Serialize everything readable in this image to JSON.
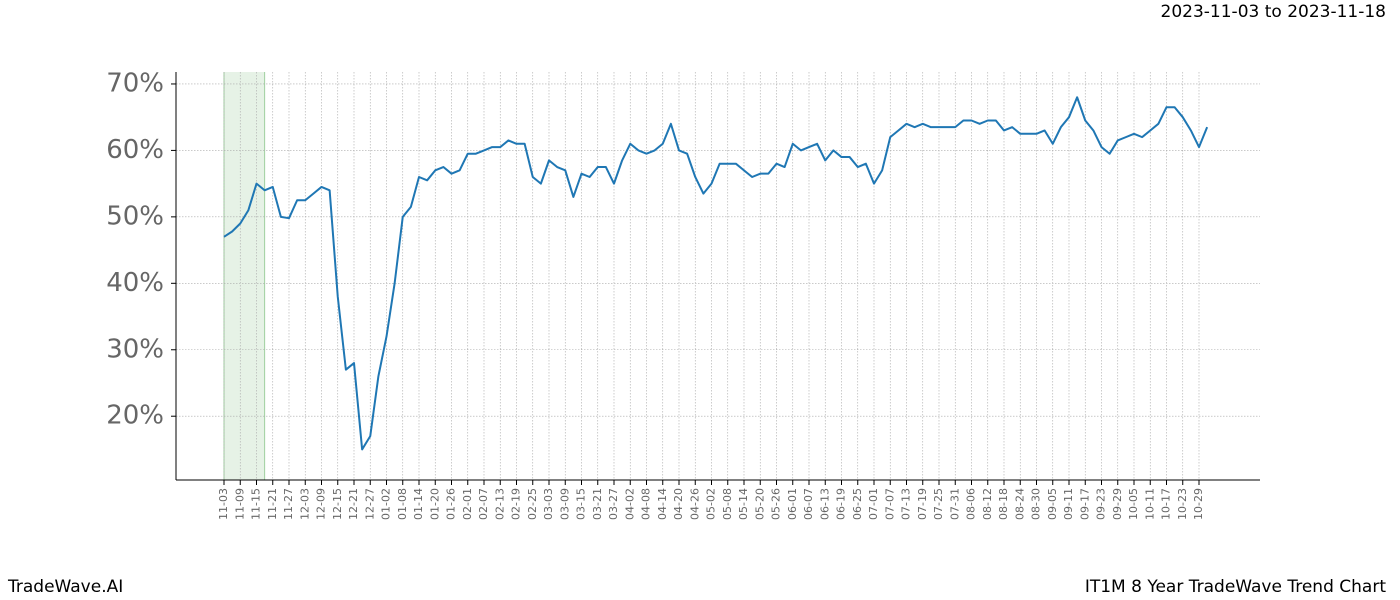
{
  "chart_data": {
    "type": "line",
    "title": "IT1M 8 Year TradeWave Trend Chart",
    "subtitle": "2023-11-03 to 2023-11-18",
    "brand": "TradeWave.AI",
    "color": "#1f77b4",
    "highlight_color": "#e6f2e6",
    "grid": true,
    "categories": [
      "11-03",
      null,
      "11-09",
      null,
      "11-15",
      null,
      "11-21",
      null,
      "11-27",
      null,
      "12-03",
      null,
      "12-09",
      null,
      "12-15",
      null,
      "12-21",
      null,
      "12-27",
      null,
      "01-02",
      null,
      "01-08",
      null,
      "01-14",
      null,
      "01-20",
      null,
      "01-26",
      null,
      "02-01",
      null,
      "02-07",
      null,
      "02-13",
      null,
      "02-19",
      null,
      "02-25",
      null,
      "03-03",
      null,
      "03-09",
      null,
      "03-15",
      null,
      "03-21",
      null,
      "03-27",
      null,
      "04-02",
      null,
      "04-08",
      null,
      "04-14",
      null,
      "04-20",
      null,
      "04-26",
      null,
      "05-02",
      null,
      "05-08",
      null,
      "05-14",
      null,
      "05-20",
      null,
      "05-26",
      null,
      "06-01",
      null,
      "06-07",
      null,
      "06-13",
      null,
      "06-19",
      null,
      "06-25",
      null,
      "07-01",
      null,
      "07-07",
      null,
      "07-13",
      null,
      "07-19",
      null,
      "07-25",
      null,
      "07-31",
      null,
      "08-06",
      null,
      "08-12",
      null,
      "08-18",
      null,
      "08-24",
      null,
      "08-30",
      null,
      "09-05",
      null,
      "09-11",
      null,
      "09-17",
      null,
      "09-23",
      null,
      "09-29",
      null,
      "10-05",
      null,
      "10-11",
      null,
      "10-17",
      null,
      "10-23",
      null,
      "10-29",
      null
    ],
    "values": [
      47,
      47.8,
      49,
      51,
      55,
      54,
      54.5,
      50,
      49.8,
      52.5,
      52.5,
      53.5,
      54.5,
      54,
      38,
      27,
      28,
      15,
      17,
      26,
      32,
      40,
      50,
      51.5,
      56,
      55.5,
      57,
      57.5,
      56.5,
      57,
      59.5,
      59.5,
      60,
      60.5,
      60.5,
      61.5,
      61,
      61,
      56,
      55,
      58.5,
      57.5,
      57,
      53,
      56.5,
      56,
      57.5,
      57.5,
      55,
      58.5,
      61,
      60,
      59.5,
      60,
      61,
      64,
      60,
      59.5,
      56,
      53.5,
      55,
      58,
      58,
      58,
      57,
      56,
      56.5,
      56.5,
      58,
      57.5,
      61,
      60,
      60.5,
      61,
      58.5,
      60,
      59,
      59,
      57.5,
      58,
      55,
      57,
      62,
      63,
      64,
      63.5,
      64,
      63.5,
      63.5,
      63.5,
      63.5,
      64.5,
      64.5,
      64,
      64.5,
      64.5,
      63,
      63.5,
      62.5,
      62.5,
      62.5,
      63,
      61,
      63.5,
      65,
      68,
      64.5,
      63,
      60.5,
      59.5,
      61.5,
      62,
      62.5,
      62,
      63,
      64,
      66.5,
      66.5,
      65,
      63,
      60.5,
      63.5
    ],
    "ylim": [
      10.4,
      71.8
    ],
    "yticks": [
      {
        "value": 20,
        "label": "20%"
      },
      {
        "value": 30,
        "label": "30%"
      },
      {
        "value": 40,
        "label": "40%"
      },
      {
        "value": 50,
        "label": "50%"
      },
      {
        "value": 60,
        "label": "60%"
      },
      {
        "value": 70,
        "label": "70%"
      }
    ]
  }
}
